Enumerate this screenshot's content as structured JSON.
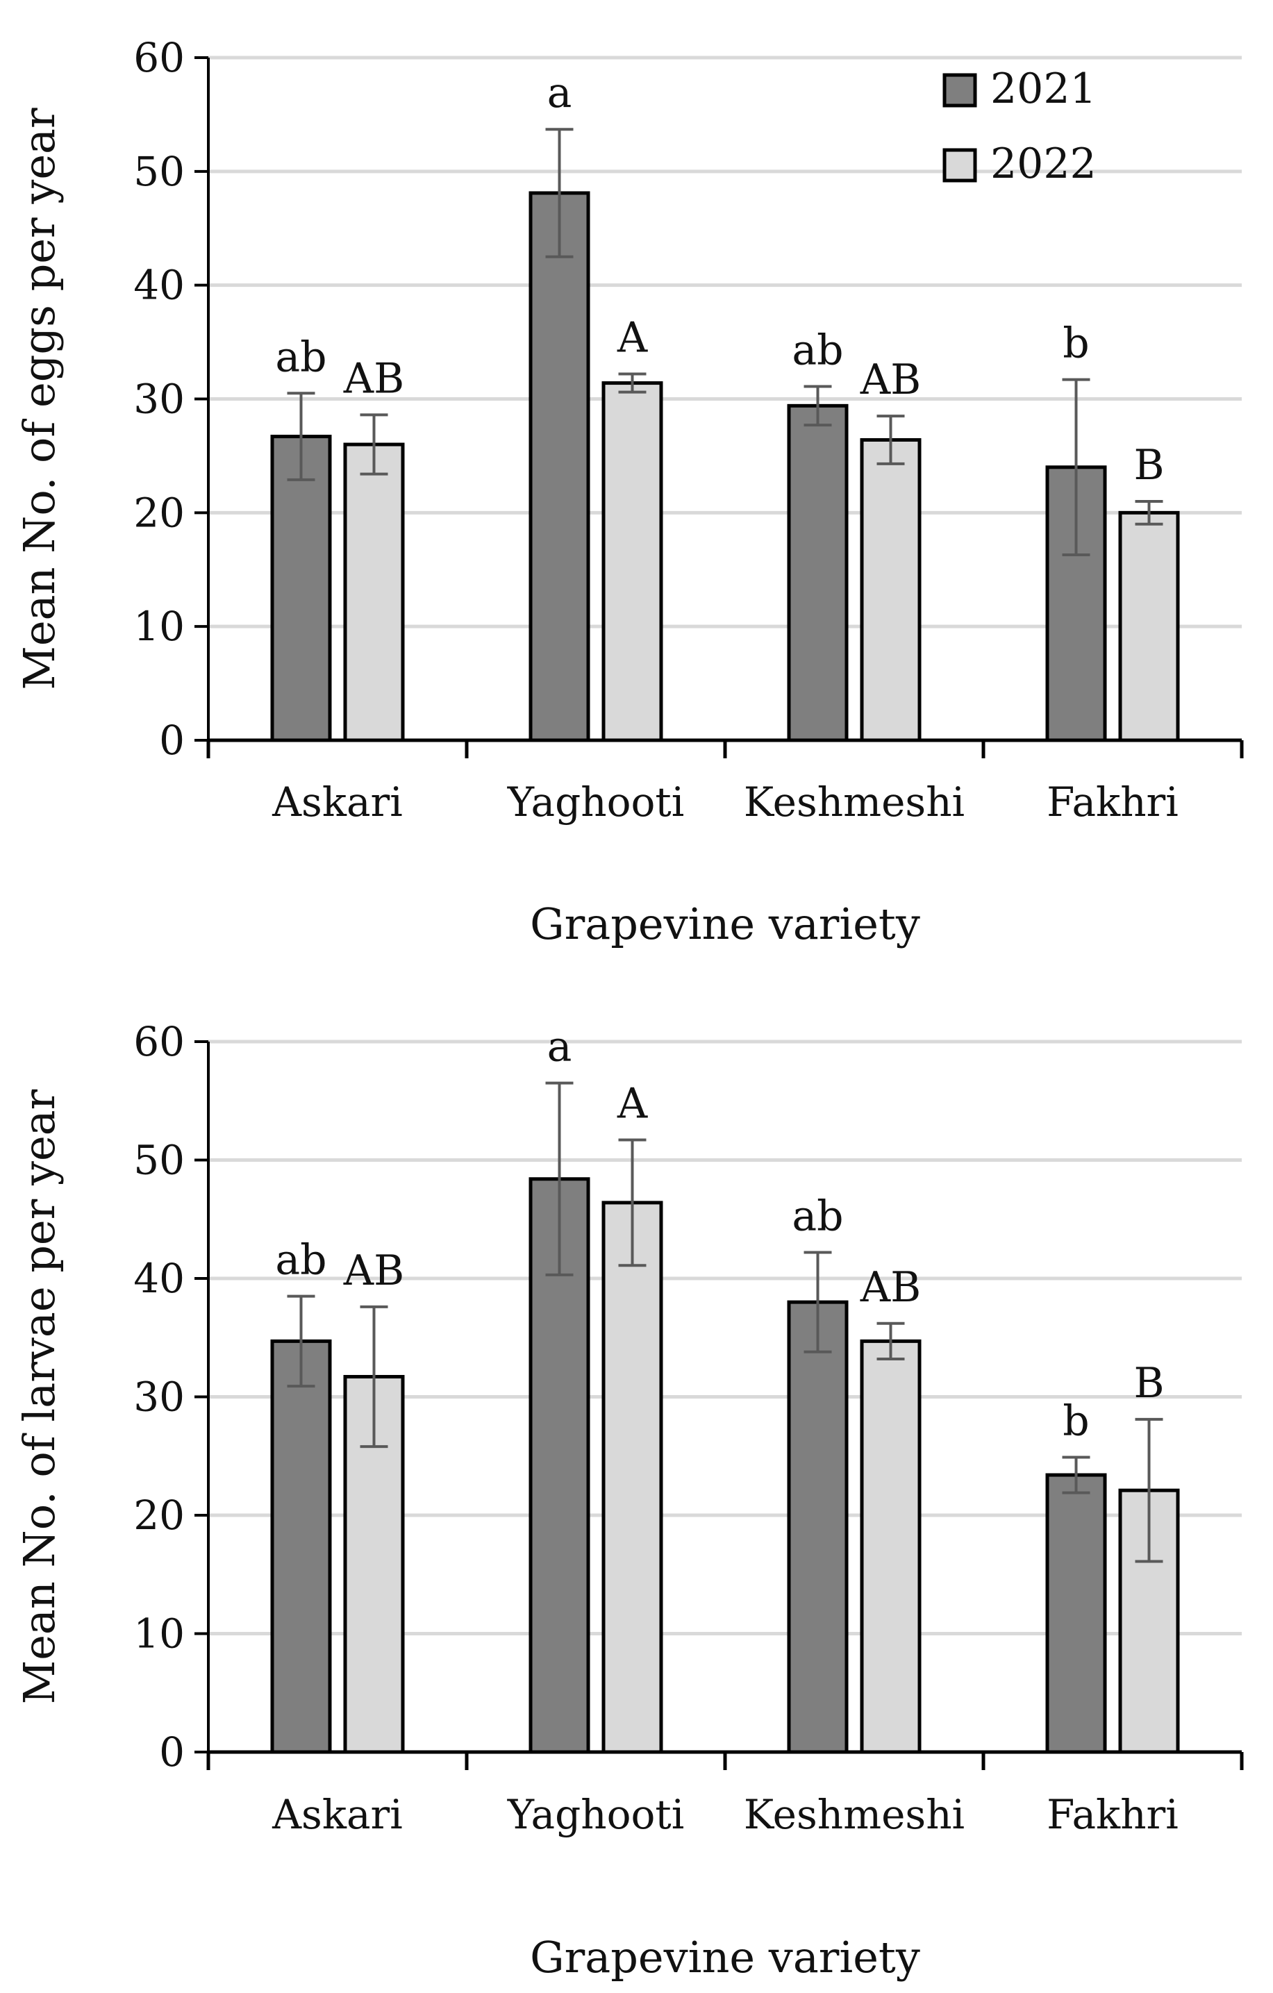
{
  "colors": {
    "series_2021": "#7f7f7f",
    "series_2022": "#d9d9d9",
    "bar_stroke": "#000000",
    "grid": "#d9d9d9",
    "error_bar": "#595959",
    "error_bar_light": "#a6a6a6"
  },
  "chart_data": [
    {
      "type": "bar",
      "categories": [
        "Askari",
        "Yaghooti",
        "Keshmeshi",
        "Fakhri"
      ],
      "series": [
        {
          "name": "2021",
          "values": [
            26.7,
            48.1,
            29.4,
            24.0
          ],
          "errors": [
            3.8,
            5.6,
            1.7,
            7.7
          ],
          "letters": [
            "ab",
            "a",
            "ab",
            "b"
          ]
        },
        {
          "name": "2022",
          "values": [
            26.0,
            31.4,
            26.4,
            20.0
          ],
          "errors": [
            2.6,
            0.8,
            2.1,
            1.0
          ],
          "letters": [
            "AB",
            "A",
            "AB",
            "B"
          ]
        }
      ],
      "xlabel": "Grapevine variety",
      "ylabel": "Mean No. of eggs per year",
      "ylim": [
        0,
        60
      ],
      "yticks": [
        0,
        10,
        20,
        30,
        40,
        50,
        60
      ],
      "grid": true,
      "legend": "top-right"
    },
    {
      "type": "bar",
      "categories": [
        "Askari",
        "Yaghooti",
        "Keshmeshi",
        "Fakhri"
      ],
      "series": [
        {
          "name": "2021",
          "values": [
            34.7,
            48.4,
            38.0,
            23.4
          ],
          "errors": [
            3.8,
            8.1,
            4.2,
            1.5
          ],
          "letters": [
            "ab",
            "a",
            "ab",
            "b"
          ]
        },
        {
          "name": "2022",
          "values": [
            31.7,
            46.4,
            34.7,
            22.1
          ],
          "errors": [
            5.9,
            5.3,
            1.5,
            6.0
          ],
          "letters": [
            "AB",
            "A",
            "AB",
            "B"
          ]
        }
      ],
      "xlabel": "Grapevine variety",
      "ylabel": "Mean No. of larvae per year",
      "ylim": [
        0,
        60
      ],
      "yticks": [
        0,
        10,
        20,
        30,
        40,
        50,
        60
      ],
      "grid": true,
      "legend": "none"
    }
  ]
}
